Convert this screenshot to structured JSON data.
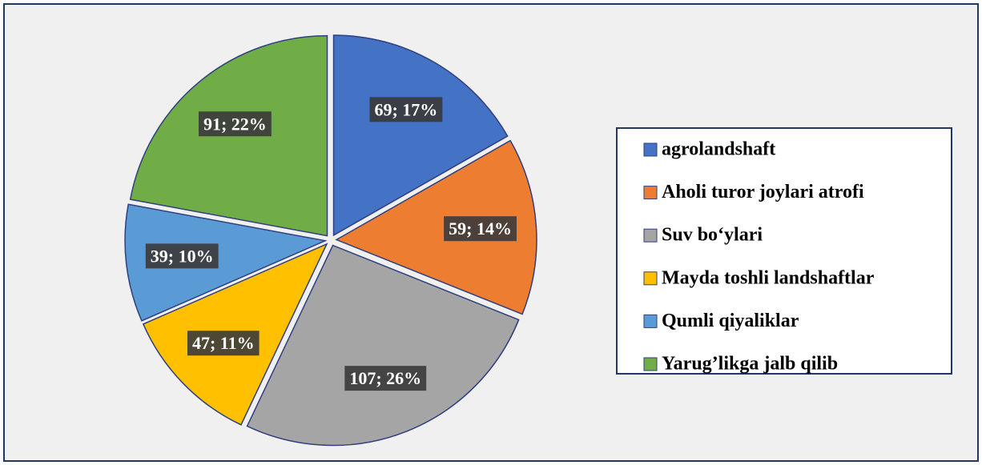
{
  "chart_data": {
    "type": "pie",
    "categories": [
      "agrolandshaft",
      "Aholi turor joylari atrofi",
      "Suv bo‘ylari",
      "Mayda toshli landshaftlar",
      "Qumli qiyaliklar",
      "Yarug’likga jalb qilib"
    ],
    "values": [
      69,
      59,
      107,
      47,
      39,
      91
    ],
    "value_labels": [
      "69; 17%",
      "59; 14%",
      "107; 26%",
      "47; 11%",
      "39; 10%",
      "91; 22%"
    ],
    "colors": [
      "#4472c4",
      "#ed7d31",
      "#a5a5a5",
      "#ffc000",
      "#5b9bd5",
      "#70ad47"
    ],
    "legend": "right"
  }
}
